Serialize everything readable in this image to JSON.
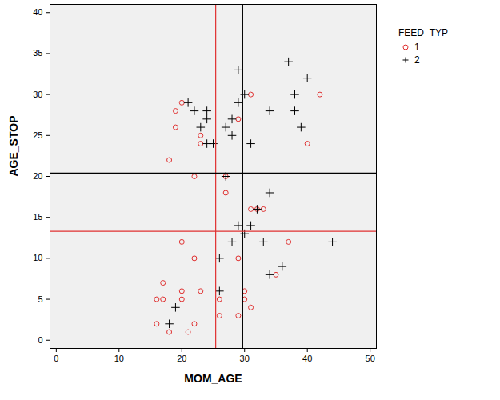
{
  "chart_data": {
    "type": "scatter",
    "x_label": "MOM_AGE",
    "y_label": "AGE_STOP",
    "legend_title": "FEED_TYP",
    "legend": "right",
    "grid": false,
    "xlim": [
      -1,
      51
    ],
    "ylim": [
      -1,
      41
    ],
    "xticks": [
      0,
      10,
      20,
      30,
      40,
      50
    ],
    "yticks": [
      0,
      5,
      10,
      15,
      20,
      25,
      30,
      35,
      40
    ],
    "series": [
      {
        "name": "1",
        "color": "#e03030",
        "marker": "circle",
        "values": [
          [
            18,
            22
          ],
          [
            20,
            29
          ],
          [
            19,
            28
          ],
          [
            19,
            26
          ],
          [
            23,
            25
          ],
          [
            23,
            24
          ],
          [
            22,
            20
          ],
          [
            27,
            20
          ],
          [
            27,
            18
          ],
          [
            29,
            27
          ],
          [
            31,
            30
          ],
          [
            42,
            30
          ],
          [
            40,
            24
          ],
          [
            31,
            16
          ],
          [
            33,
            16
          ],
          [
            32,
            16
          ],
          [
            20,
            12
          ],
          [
            22,
            10
          ],
          [
            29,
            10
          ],
          [
            37,
            12
          ],
          [
            35,
            8
          ],
          [
            17,
            7
          ],
          [
            20,
            6
          ],
          [
            23,
            6
          ],
          [
            16,
            5
          ],
          [
            17,
            5
          ],
          [
            20,
            5
          ],
          [
            26,
            5
          ],
          [
            30,
            6
          ],
          [
            30,
            5
          ],
          [
            31,
            4
          ],
          [
            26,
            3
          ],
          [
            29,
            3
          ],
          [
            16,
            2
          ],
          [
            22,
            2
          ],
          [
            18,
            1
          ],
          [
            21,
            1
          ]
        ]
      },
      {
        "name": "2",
        "color": "#000000",
        "marker": "plus",
        "values": [
          [
            37,
            34
          ],
          [
            29,
            33
          ],
          [
            40,
            32
          ],
          [
            30,
            30
          ],
          [
            38,
            30
          ],
          [
            21,
            29
          ],
          [
            29,
            29
          ],
          [
            22,
            28
          ],
          [
            24,
            28
          ],
          [
            34,
            28
          ],
          [
            38,
            28
          ],
          [
            24,
            27
          ],
          [
            28,
            27
          ],
          [
            39,
            26
          ],
          [
            23,
            26
          ],
          [
            27,
            26
          ],
          [
            28,
            25
          ],
          [
            24,
            24
          ],
          [
            25,
            24
          ],
          [
            31,
            24
          ],
          [
            27,
            20
          ],
          [
            34,
            18
          ],
          [
            32,
            16
          ],
          [
            29,
            14
          ],
          [
            31,
            14
          ],
          [
            30,
            13
          ],
          [
            28,
            12
          ],
          [
            33,
            12
          ],
          [
            44,
            12
          ],
          [
            26,
            10
          ],
          [
            36,
            9
          ],
          [
            34,
            8
          ],
          [
            26,
            6
          ],
          [
            19,
            4
          ],
          [
            18,
            2
          ]
        ]
      }
    ],
    "reference_lines": [
      {
        "axis": "x",
        "value": 25.4,
        "color": "#e03030"
      },
      {
        "axis": "x",
        "value": 29.7,
        "color": "#000000"
      },
      {
        "axis": "y",
        "value": 20.4,
        "color": "#000000"
      },
      {
        "axis": "y",
        "value": 13.3,
        "color": "#e03030"
      }
    ]
  }
}
